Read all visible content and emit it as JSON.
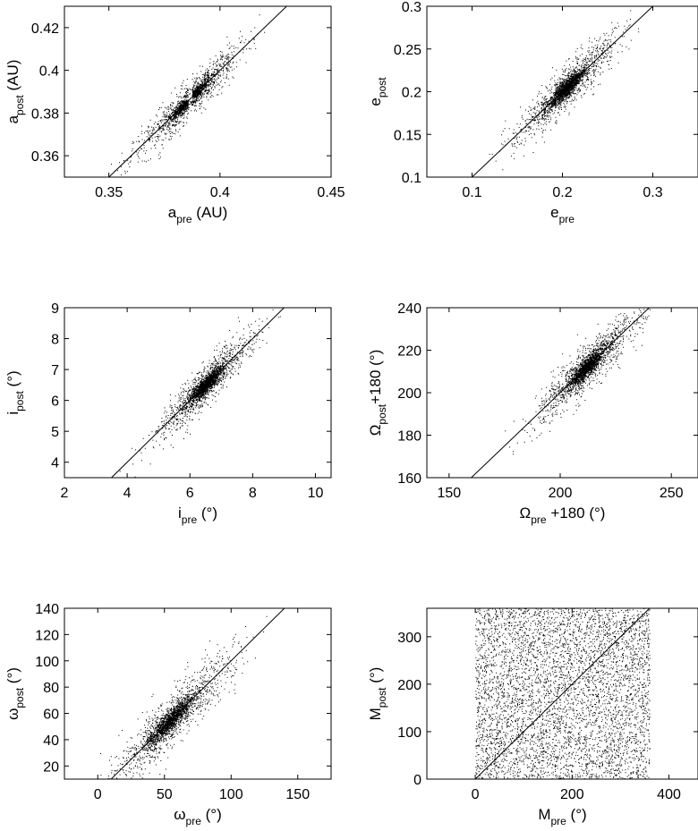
{
  "figure": {
    "background": "#ffffff",
    "point_color": "#000000",
    "axes_color": "#000000"
  },
  "chart_data": [
    {
      "type": "scatter",
      "xlabel": {
        "base": "a",
        "sub": "pre",
        "unit": " (AU)"
      },
      "ylabel": {
        "base": "a",
        "sub": "post",
        "unit": " (AU)"
      },
      "xlim": [
        0.33,
        0.45
      ],
      "ylim": [
        0.35,
        0.43
      ],
      "xticks": [
        0.35,
        0.4,
        0.45
      ],
      "xtick_labels": [
        "0.35",
        "0.4",
        "0.45"
      ],
      "yticks": [
        0.36,
        0.38,
        0.4,
        0.42
      ],
      "ytick_labels": [
        "0.36",
        "0.38",
        "0.4",
        "0.42"
      ],
      "reference_line": {
        "x": [
          0.35,
          0.43
        ],
        "y": [
          0.35,
          0.43
        ]
      },
      "distribution": {
        "center": [
          0.3865,
          0.3865
        ],
        "spread": [
          0.012,
          0.01
        ],
        "cross_gap": [
          0.3865,
          0.3865
        ],
        "n_points": 2200
      }
    },
    {
      "type": "scatter",
      "xlabel": {
        "base": "e",
        "sub": "pre",
        "unit": ""
      },
      "ylabel": {
        "base": "e",
        "sub": "post",
        "unit": ""
      },
      "xlim": [
        0.05,
        0.35
      ],
      "ylim": [
        0.1,
        0.3
      ],
      "xticks": [
        0.1,
        0.2,
        0.3
      ],
      "xtick_labels": [
        "0.1",
        "0.2",
        "0.3"
      ],
      "yticks": [
        0.1,
        0.15,
        0.2,
        0.25,
        0.3
      ],
      "ytick_labels": [
        "0.1",
        "0.15",
        "0.2",
        "0.25",
        "0.3"
      ],
      "reference_line": {
        "x": [
          0.1,
          0.3
        ],
        "y": [
          0.1,
          0.3
        ]
      },
      "distribution": {
        "center": [
          0.205,
          0.205
        ],
        "spread": [
          0.028,
          0.028
        ],
        "n_points": 2400
      }
    },
    {
      "type": "scatter",
      "xlabel": {
        "base": "i",
        "sub": "pre",
        "unit": " (°)"
      },
      "ylabel": {
        "base": "i",
        "sub": "post",
        "unit": " (°)"
      },
      "xlim": [
        2,
        10.5
      ],
      "ylim": [
        3.5,
        9
      ],
      "xticks": [
        2,
        4,
        6,
        8,
        10
      ],
      "xtick_labels": [
        "2",
        "4",
        "6",
        "8",
        "10"
      ],
      "yticks": [
        4,
        5,
        6,
        7,
        8,
        9
      ],
      "ytick_labels": [
        "4",
        "5",
        "6",
        "7",
        "8",
        "9"
      ],
      "reference_line": {
        "x": [
          3.5,
          9
        ],
        "y": [
          3.5,
          9
        ]
      },
      "distribution": {
        "center": [
          6.5,
          6.5
        ],
        "spread": [
          0.75,
          0.75
        ],
        "n_points": 2400
      }
    },
    {
      "type": "scatter",
      "xlabel": {
        "base": "Ω",
        "sub": "pre",
        "unit": " +180 (°)"
      },
      "ylabel": {
        "base": "Ω",
        "sub": "post",
        "unit": "+180 (°)"
      },
      "xlim": [
        140,
        262
      ],
      "ylim": [
        160,
        240
      ],
      "xticks": [
        150,
        200,
        250
      ],
      "xtick_labels": [
        "150",
        "200",
        "250"
      ],
      "yticks": [
        160,
        180,
        200,
        220,
        240
      ],
      "ytick_labels": [
        "160",
        "180",
        "200",
        "220",
        "240"
      ],
      "reference_line": {
        "x": [
          160,
          240
        ],
        "y": [
          160,
          240
        ]
      },
      "distribution": {
        "center": [
          212,
          212
        ],
        "spread": [
          12,
          12
        ],
        "n_points": 2400
      }
    },
    {
      "type": "scatter",
      "xlabel": {
        "base": "ω",
        "sub": "pre",
        "unit": " (°)"
      },
      "ylabel": {
        "base": "ω",
        "sub": "post",
        "unit": " (°)"
      },
      "xlim": [
        -25,
        175
      ],
      "ylim": [
        10,
        140
      ],
      "xticks": [
        0,
        50,
        100,
        150
      ],
      "xtick_labels": [
        "0",
        "50",
        "100",
        "150"
      ],
      "yticks": [
        20,
        40,
        60,
        80,
        100,
        120,
        140
      ],
      "ytick_labels": [
        "20",
        "40",
        "60",
        "80",
        "100",
        "120",
        "140"
      ],
      "reference_line": {
        "x": [
          10,
          140
        ],
        "y": [
          10,
          140
        ]
      },
      "distribution": {
        "center": [
          55,
          55
        ],
        "spread": [
          24,
          24
        ],
        "n_points": 2400
      }
    },
    {
      "type": "scatter",
      "xlabel": {
        "base": "M",
        "sub": "pre",
        "unit": " (°)"
      },
      "ylabel": {
        "base": "M",
        "sub": "post",
        "unit": " (°)"
      },
      "xlim": [
        -100,
        460
      ],
      "ylim": [
        0,
        360
      ],
      "xticks": [
        0,
        200,
        400
      ],
      "xtick_labels": [
        "0",
        "200",
        "400"
      ],
      "yticks": [
        0,
        100,
        200,
        300
      ],
      "ytick_labels": [
        "0",
        "100",
        "200",
        "300"
      ],
      "reference_line": {
        "x": [
          0,
          360
        ],
        "y": [
          0,
          360
        ]
      },
      "distribution": {
        "uniform_x": [
          0,
          360
        ],
        "uniform_y": [
          0,
          360
        ],
        "n_points": 5000
      }
    }
  ]
}
